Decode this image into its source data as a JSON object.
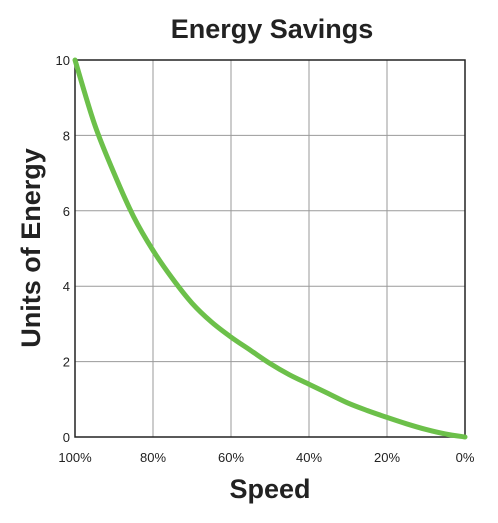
{
  "chart_data": {
    "type": "line",
    "title": "Energy Savings",
    "xlabel": "Speed",
    "ylabel": "Units of Energy",
    "x_ticks": [
      "100%",
      "80%",
      "60%",
      "40%",
      "20%",
      "0%"
    ],
    "x_tick_values": [
      100,
      80,
      60,
      40,
      20,
      0
    ],
    "y_ticks": [
      "0",
      "2",
      "4",
      "6",
      "8",
      "10"
    ],
    "y_tick_values": [
      0,
      2,
      4,
      6,
      8,
      10
    ],
    "xlim": [
      100,
      0
    ],
    "ylim": [
      0,
      10
    ],
    "grid": true,
    "series": [
      {
        "color": "#6cc04a",
        "x": [
          100,
          95,
          90,
          85,
          80,
          75,
          70,
          65,
          60,
          55,
          50,
          45,
          40,
          35,
          30,
          25,
          20,
          15,
          10,
          5,
          0
        ],
        "y": [
          10,
          8.3,
          7.0,
          5.85,
          4.95,
          4.2,
          3.55,
          3.05,
          2.65,
          2.3,
          1.95,
          1.65,
          1.4,
          1.15,
          0.9,
          0.7,
          0.52,
          0.35,
          0.2,
          0.08,
          0
        ]
      }
    ]
  }
}
